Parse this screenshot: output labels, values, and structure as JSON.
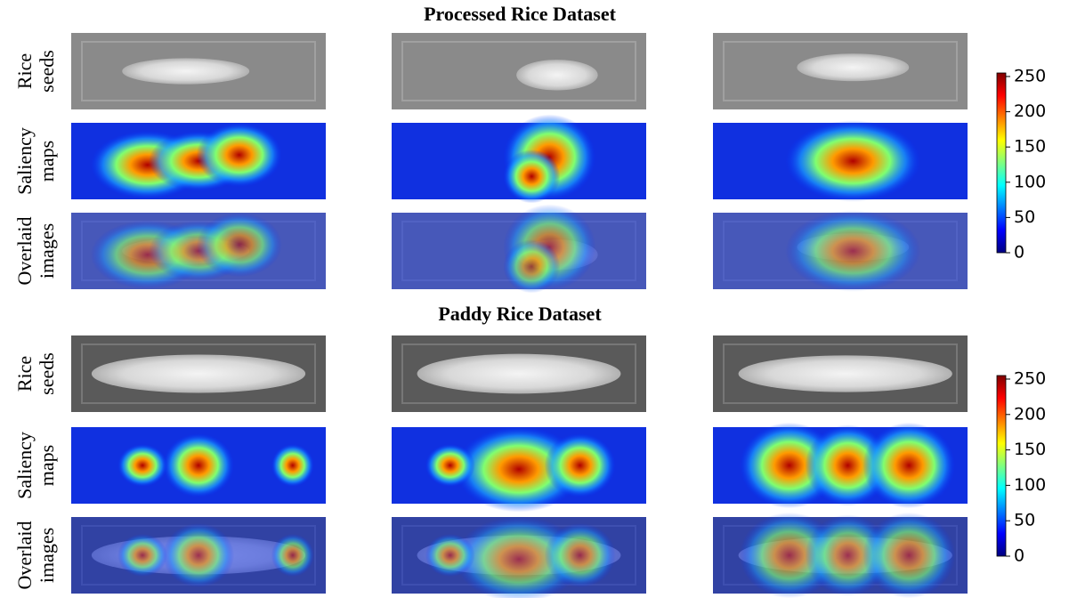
{
  "sections": [
    {
      "title": "Processed Rice Dataset",
      "rows": [
        [
          "Rice",
          "seeds"
        ],
        [
          "Saliency",
          "maps"
        ],
        [
          "Overlaid",
          "images"
        ]
      ],
      "colorbar": {
        "ylim": [
          0,
          255
        ],
        "yticks": [
          0,
          50,
          100,
          150,
          200,
          250
        ]
      }
    },
    {
      "title": "Paddy Rice Dataset",
      "rows": [
        [
          "Rice",
          "seeds"
        ],
        [
          "Saliency",
          "maps"
        ],
        [
          "Overlaid",
          "images"
        ]
      ],
      "colorbar": {
        "ylim": [
          0,
          255
        ],
        "yticks": [
          0,
          50,
          100,
          150,
          200,
          250
        ]
      }
    }
  ]
}
